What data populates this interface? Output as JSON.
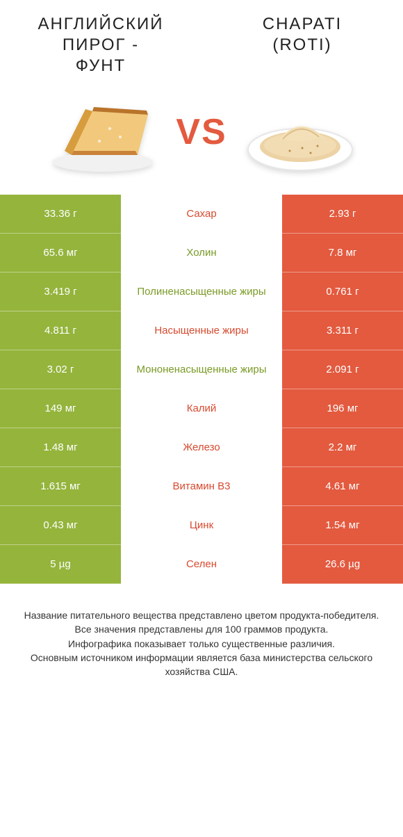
{
  "colors": {
    "green": "#94b43c",
    "orange": "#e35a3f",
    "mid_text_green": "#7a9a26",
    "mid_text_orange": "#d64a2f"
  },
  "titles": {
    "left": "АНГЛИЙСКИЙ\nПИРОГ -\nФУНТ",
    "right": "CHAPATI\n(ROTI)"
  },
  "vs_label": "VS",
  "rows": [
    {
      "left": "33.36 г",
      "label": "Сахар",
      "right": "2.93 г",
      "winner": "left"
    },
    {
      "left": "65.6 мг",
      "label": "Холин",
      "right": "7.8 мг",
      "winner": "left"
    },
    {
      "left": "3.419 г",
      "label": "Полиненасыщенные жиры",
      "right": "0.761 г",
      "winner": "left"
    },
    {
      "left": "4.811 г",
      "label": "Насыщенные жиры",
      "right": "3.311 г",
      "winner": "left"
    },
    {
      "left": "3.02 г",
      "label": "Мононенасыщенные жиры",
      "right": "2.091 г",
      "winner": "left"
    },
    {
      "left": "149 мг",
      "label": "Калий",
      "right": "196 мг",
      "winner": "right"
    },
    {
      "left": "1.48 мг",
      "label": "Железо",
      "right": "2.2 мг",
      "winner": "right"
    },
    {
      "left": "1.615 мг",
      "label": "Витамин B3",
      "right": "4.61 мг",
      "winner": "right"
    },
    {
      "left": "0.43 мг",
      "label": "Цинк",
      "right": "1.54 мг",
      "winner": "right"
    },
    {
      "left": "5 µg",
      "label": "Селен",
      "right": "26.6 µg",
      "winner": "right"
    }
  ],
  "footer_lines": [
    "Название питательного вещества представлено цветом продукта-победителя.",
    "Все значения представлены для 100 граммов продукта.",
    "Инфографика показывает только существенные различия.",
    "Основным источником информации является база министерства сельского хозяйства США."
  ]
}
